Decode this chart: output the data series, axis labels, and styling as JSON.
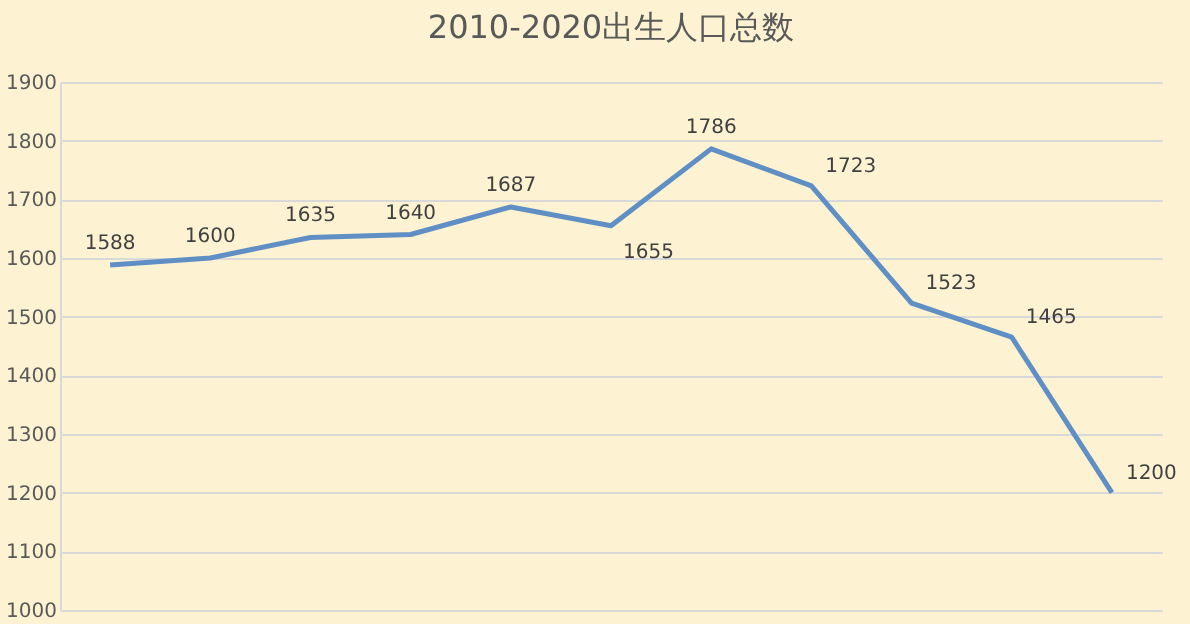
{
  "chart_data": {
    "type": "line",
    "title": "2010-2020出生人口总数",
    "categories": [
      null,
      null,
      null,
      null,
      null,
      null,
      null,
      null,
      null,
      null,
      null
    ],
    "series": [
      {
        "color": "#5f8fc4",
        "values": [
          1588,
          1600,
          1635,
          1640,
          1687,
          1655,
          1786,
          1723,
          1523,
          1465,
          1200
        ]
      }
    ],
    "ylim": [
      1000,
      1900
    ],
    "yticks": [
      1000,
      1100,
      1200,
      1300,
      1400,
      1500,
      1600,
      1700,
      1800,
      1900
    ],
    "grid": "y",
    "data_labels": true,
    "marker": "none",
    "line_style": "solid",
    "tick_labels": "y"
  }
}
